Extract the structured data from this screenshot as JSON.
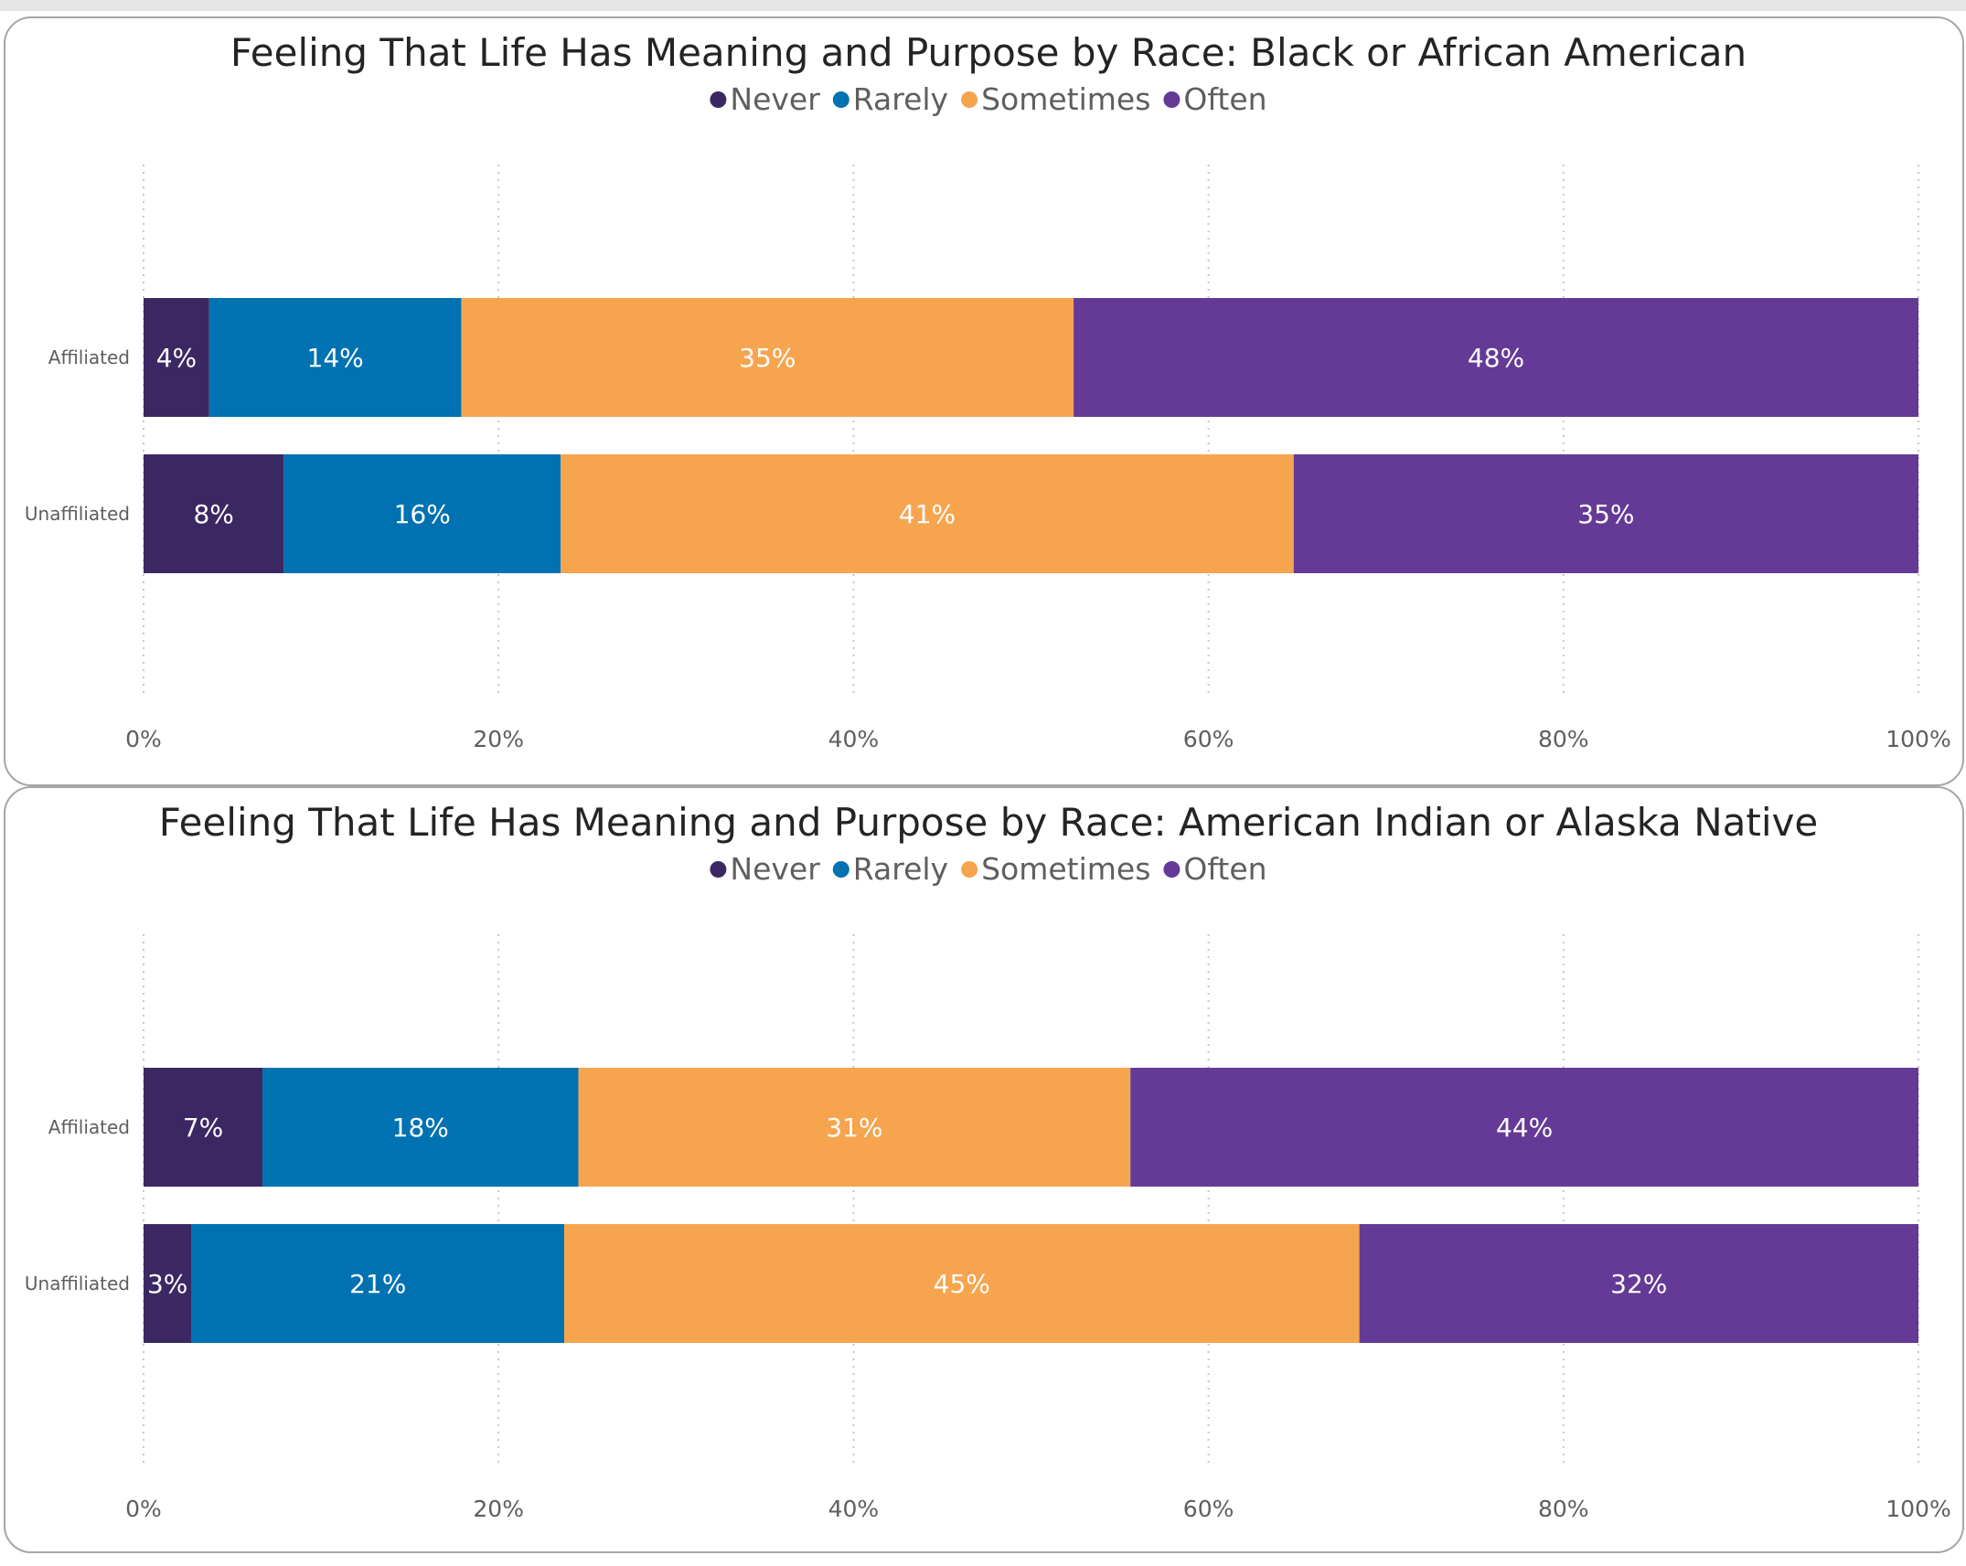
{
  "colors": {
    "Never": "#3b2863",
    "Rarely": "#0072b2",
    "Sometimes": "#f7a44f",
    "Often": "#643a96"
  },
  "chart_data": [
    {
      "type": "bar",
      "orientation": "horizontal",
      "stacked": "100%",
      "title": "Feeling That Life Has Meaning and Purpose by Race: Black or African American",
      "legend": [
        "Never",
        "Rarely",
        "Sometimes",
        "Often"
      ],
      "legend_position": "top-center",
      "categories": [
        "Affiliated",
        "Unaffiliated"
      ],
      "series": [
        {
          "name": "Never",
          "values": [
            3.7,
            7.9
          ],
          "labels": [
            "4%",
            "8%"
          ]
        },
        {
          "name": "Rarely",
          "values": [
            14.2,
            15.6
          ],
          "labels": [
            "14%",
            "16%"
          ]
        },
        {
          "name": "Sometimes",
          "values": [
            34.5,
            41.3
          ],
          "labels": [
            "35%",
            "41%"
          ]
        },
        {
          "name": "Often",
          "values": [
            47.6,
            35.2
          ],
          "labels": [
            "48%",
            "35%"
          ]
        }
      ],
      "xlim": [
        0,
        100
      ],
      "xticks": [
        "0%",
        "20%",
        "40%",
        "60%",
        "80%",
        "100%"
      ],
      "grid": "vertical-dotted"
    },
    {
      "type": "bar",
      "orientation": "horizontal",
      "stacked": "100%",
      "title": "Feeling That Life Has Meaning and Purpose by Race: American Indian or Alaska Native",
      "legend": [
        "Never",
        "Rarely",
        "Sometimes",
        "Often"
      ],
      "legend_position": "top-center",
      "categories": [
        "Affiliated",
        "Unaffiliated"
      ],
      "series": [
        {
          "name": "Never",
          "values": [
            6.7,
            2.7
          ],
          "labels": [
            "7%",
            "3%"
          ]
        },
        {
          "name": "Rarely",
          "values": [
            17.8,
            21.0
          ],
          "labels": [
            "18%",
            "21%"
          ]
        },
        {
          "name": "Sometimes",
          "values": [
            31.1,
            44.8
          ],
          "labels": [
            "31%",
            "45%"
          ]
        },
        {
          "name": "Often",
          "values": [
            44.4,
            31.5
          ],
          "labels": [
            "44%",
            "32%"
          ]
        }
      ],
      "xlim": [
        0,
        100
      ],
      "xticks": [
        "0%",
        "20%",
        "40%",
        "60%",
        "80%",
        "100%"
      ],
      "grid": "vertical-dotted"
    }
  ]
}
